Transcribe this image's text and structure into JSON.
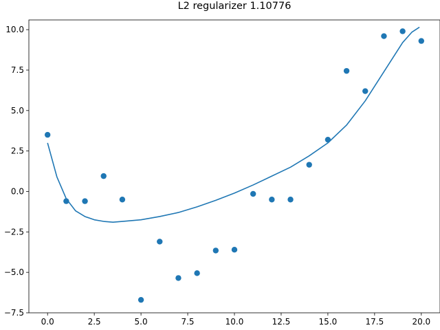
{
  "chart_data": {
    "type": "scatter",
    "title": "L2 regularizer 1.10776",
    "xlabel": "",
    "ylabel": "",
    "xlim": [
      -1.0,
      21.0
    ],
    "ylim": [
      -7.5,
      10.6
    ],
    "grid": false,
    "x_ticks": [
      0.0,
      2.5,
      5.0,
      7.5,
      10.0,
      12.5,
      15.0,
      17.5,
      20.0
    ],
    "x_tick_labels": [
      "0.0",
      "2.5",
      "5.0",
      "7.5",
      "10.0",
      "12.5",
      "15.0",
      "17.5",
      "20.0"
    ],
    "y_ticks": [
      -7.5,
      -5.0,
      -2.5,
      0.0,
      2.5,
      5.0,
      7.5,
      10.0
    ],
    "y_tick_labels": [
      "−7.5",
      "−5.0",
      "−2.5",
      "0.0",
      "2.5",
      "5.0",
      "7.5",
      "10.0"
    ],
    "color": "#1f77b4",
    "points": {
      "x": [
        0,
        1,
        2,
        3,
        4,
        5,
        6,
        7,
        8,
        9,
        10,
        11,
        12,
        13,
        14,
        15,
        16,
        17,
        18,
        19,
        20
      ],
      "y": [
        3.5,
        -0.6,
        -0.6,
        0.95,
        -0.5,
        -6.7,
        -3.1,
        -5.35,
        -5.05,
        -3.65,
        -3.6,
        -0.15,
        -0.5,
        -0.5,
        1.65,
        3.2,
        7.45,
        6.2,
        9.6,
        9.9,
        9.3
      ]
    },
    "fit_line": {
      "x": [
        0.0,
        0.5,
        1.0,
        1.5,
        2.0,
        2.5,
        3.0,
        3.5,
        4.0,
        5.0,
        6.0,
        7.0,
        8.0,
        9.0,
        10.0,
        11.0,
        12.0,
        13.0,
        14.0,
        15.0,
        16.0,
        17.0,
        18.0,
        19.0,
        19.5,
        19.9
      ],
      "y": [
        3.0,
        0.9,
        -0.45,
        -1.2,
        -1.55,
        -1.75,
        -1.85,
        -1.9,
        -1.85,
        -1.75,
        -1.55,
        -1.3,
        -0.95,
        -0.55,
        -0.1,
        0.4,
        0.95,
        1.5,
        2.2,
        3.0,
        4.1,
        5.6,
        7.4,
        9.2,
        9.85,
        10.15
      ]
    }
  }
}
